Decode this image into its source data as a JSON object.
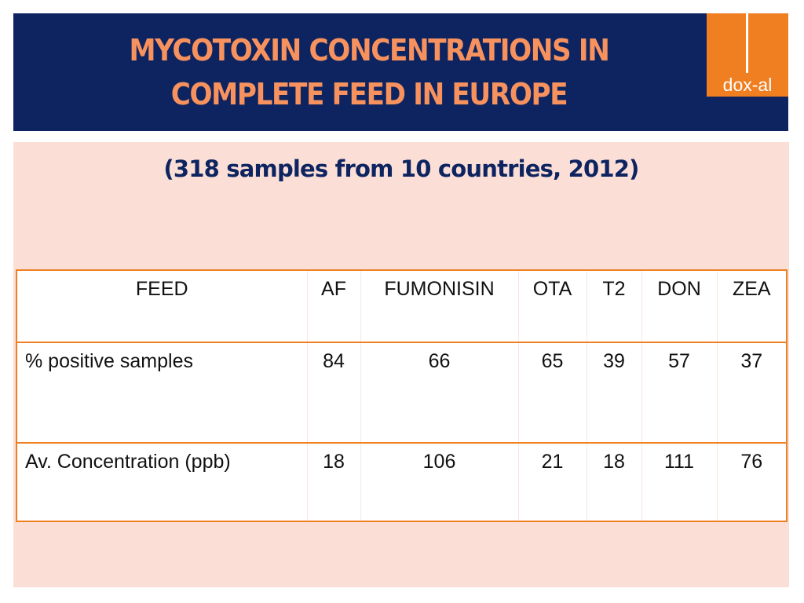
{
  "header": {
    "title_line1": "MYCOTOXIN CONCENTRATIONS IN",
    "title_line2": "COMPLETE FEED IN EUROPE",
    "logo_text": "dox-al"
  },
  "subtitle": "(318 samples from 10 countries, 2012)",
  "table": {
    "headers": [
      "FEED",
      "AF",
      "FUMONISIN",
      "OTA",
      "T2",
      "DON",
      "ZEA"
    ],
    "rows": [
      {
        "label": "% positive samples",
        "values": [
          "84",
          "66",
          "65",
          "39",
          "57",
          "37"
        ]
      },
      {
        "label": "Av. Concentration (ppb)",
        "values": [
          "18",
          "106",
          "21",
          "18",
          "111",
          "76"
        ]
      }
    ]
  },
  "colors": {
    "header_bg": "#0d2460",
    "title": "#f7925e",
    "logo_bg": "#f07f22",
    "content_bg": "#fbdfd7",
    "table_border": "#f07f22"
  }
}
